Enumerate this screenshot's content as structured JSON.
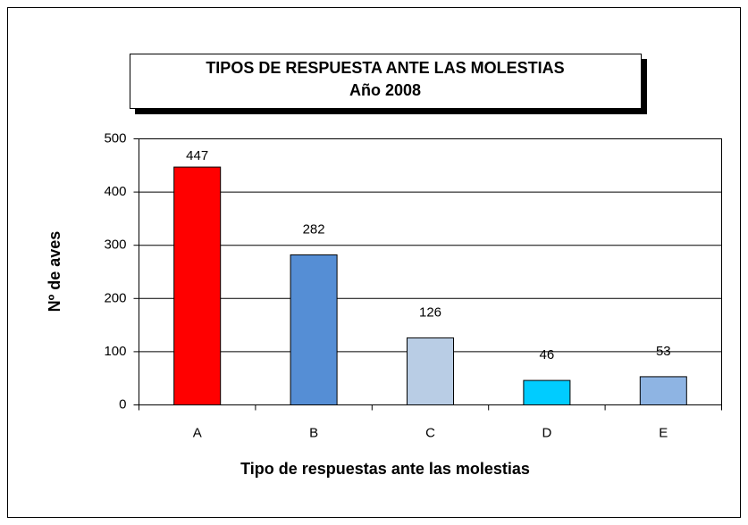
{
  "chart_data": {
    "type": "bar",
    "title": "TIPOS DE RESPUESTA ANTE LAS MOLESTIAS",
    "subtitle": "Año 2008",
    "x_label": "Tipo de respuestas ante las molestias",
    "y_label": "Nº de aves",
    "categories": [
      "A",
      "B",
      "C",
      "D",
      "E"
    ],
    "values": [
      447,
      282,
      126,
      46,
      53
    ],
    "colors": [
      "#ff0000",
      "#558ed5",
      "#b9cde5",
      "#00ccff",
      "#8eb4e3"
    ],
    "ylim": [
      0,
      500
    ],
    "yticks": [
      0,
      100,
      200,
      300,
      400,
      500
    ],
    "grid": true
  }
}
